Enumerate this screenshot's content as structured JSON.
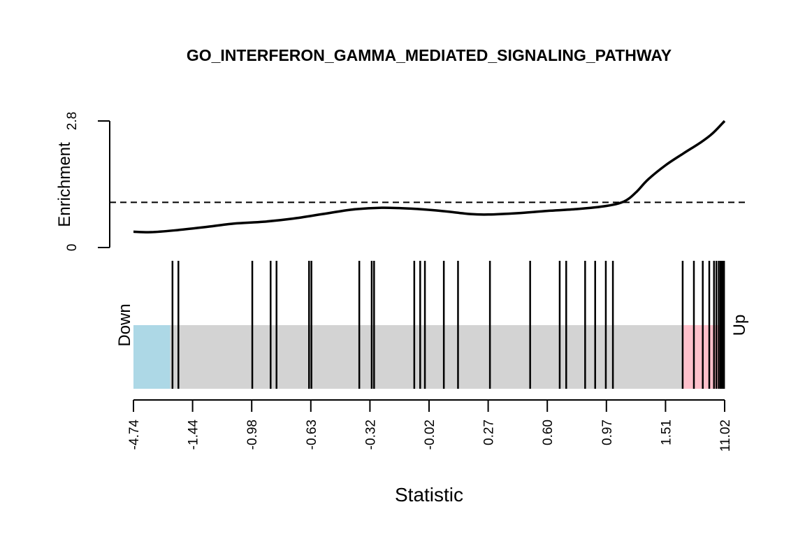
{
  "chart_data": {
    "type": "barcode",
    "title": "GO_INTERFERON_GAMMA_MEDIATED_SIGNALING_PATHWAY",
    "xlabel": "Statistic",
    "ylabel": "Enrichment",
    "y_ticks": [
      "0",
      "2.8"
    ],
    "ylim": [
      0,
      2.8
    ],
    "reference_line": 1,
    "x_tick_labels": [
      "-4.74",
      "-1.44",
      "-0.98",
      "-0.63",
      "-0.32",
      "-0.02",
      "0.27",
      "0.60",
      "0.97",
      "1.51",
      "11.02"
    ],
    "down_label": "Down",
    "up_label": "Up",
    "colors": {
      "down": "#add8e6",
      "middle": "#d3d3d3",
      "up": "#ffc0cb",
      "line": "#000000"
    },
    "down_region_end_rank": 0.062,
    "up_region_start_rank": 0.93,
    "gene_set_positions": [
      0.066,
      0.076,
      0.201,
      0.232,
      0.242,
      0.297,
      0.301,
      0.382,
      0.403,
      0.407,
      0.475,
      0.485,
      0.493,
      0.525,
      0.549,
      0.603,
      0.671,
      0.721,
      0.732,
      0.764,
      0.781,
      0.799,
      0.811,
      0.929,
      0.948,
      0.963,
      0.974,
      0.982,
      0.986,
      0.99,
      0.993,
      0.995,
      0.997,
      0.999
    ],
    "enrichment_curve": {
      "rank": [
        0.0,
        0.03,
        0.07,
        0.12,
        0.17,
        0.22,
        0.27,
        0.32,
        0.37,
        0.42,
        0.47,
        0.52,
        0.57,
        0.6,
        0.65,
        0.7,
        0.75,
        0.8,
        0.83,
        0.85,
        0.87,
        0.9,
        0.93,
        0.96,
        0.98,
        1.0
      ],
      "enrichment": [
        0.35,
        0.34,
        0.38,
        0.45,
        0.53,
        0.57,
        0.64,
        0.74,
        0.84,
        0.88,
        0.86,
        0.81,
        0.74,
        0.73,
        0.76,
        0.81,
        0.85,
        0.92,
        1.02,
        1.22,
        1.5,
        1.82,
        2.08,
        2.33,
        2.53,
        2.8
      ]
    }
  }
}
